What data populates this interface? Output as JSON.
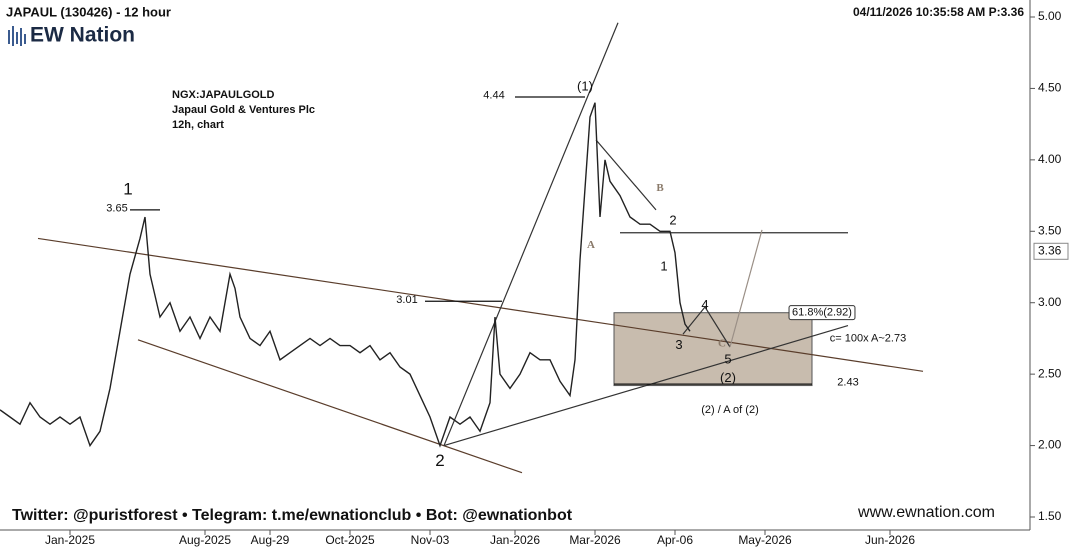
{
  "chart_data": {
    "type": "line",
    "title": "JAPAUL (130426) - 12 hour",
    "timestamp": "04/11/2026 10:35:58 AM  P:3.36",
    "logo": "EW Nation",
    "info": [
      "NGX:JAPAULGOLD",
      "Japaul Gold & Ventures Plc",
      "12h, chart"
    ],
    "footer": "Twitter: @puristforest  •  Telegram: t.me/ewnationclub  •  Bot: @ewnationbot",
    "website": "www.ewnation.com",
    "last_price": {
      "value": 3.36,
      "label": "3.36"
    },
    "xlim": [
      0,
      206
    ],
    "ylim": [
      1.5,
      5.0
    ],
    "xticks": [
      {
        "value": 14,
        "label": "Jan-2025"
      },
      {
        "value": 41,
        "label": "Aug-2025"
      },
      {
        "value": 54,
        "label": "Aug-29"
      },
      {
        "value": 70,
        "label": "Oct-2025"
      },
      {
        "value": 86,
        "label": "Nov-03"
      },
      {
        "value": 103,
        "label": "Jan-2026"
      },
      {
        "value": 119,
        "label": "Mar-2026"
      },
      {
        "value": 135,
        "label": "Apr-06"
      },
      {
        "value": 153,
        "label": "May-2026"
      },
      {
        "value": 178,
        "label": "Jun-2026"
      }
    ],
    "yticks": [
      {
        "value": 1.5,
        "label": "1.50"
      },
      {
        "value": 2.0,
        "label": "2.00"
      },
      {
        "value": 2.5,
        "label": "2.50"
      },
      {
        "value": 3.0,
        "label": "3.00"
      },
      {
        "value": 3.5,
        "label": "3.50"
      },
      {
        "value": 4.0,
        "label": "4.00"
      },
      {
        "value": 4.5,
        "label": "4.50"
      },
      {
        "value": 5.0,
        "label": "5.00"
      }
    ],
    "series": [
      {
        "color": "#222222",
        "x": [
          0,
          2,
          4,
          6,
          8,
          10,
          12,
          14,
          16,
          18,
          20,
          22,
          24,
          26,
          28,
          29,
          30,
          32,
          34,
          36,
          38,
          40,
          42,
          44,
          46,
          47,
          48,
          50,
          52,
          54,
          56,
          58,
          60,
          62,
          64,
          66,
          68,
          70,
          72,
          74,
          76,
          78,
          80,
          82,
          84,
          86,
          88,
          90,
          92,
          94,
          96,
          98,
          99,
          100,
          102,
          104,
          106,
          108,
          110,
          112,
          114,
          115,
          116,
          117,
          118,
          119,
          120,
          121,
          122,
          124,
          126,
          128,
          130,
          132,
          134,
          135,
          136,
          137,
          138
        ],
        "values": [
          2.25,
          2.2,
          2.15,
          2.3,
          2.2,
          2.15,
          2.2,
          2.15,
          2.2,
          2.0,
          2.1,
          2.4,
          2.8,
          3.2,
          3.45,
          3.6,
          3.2,
          2.9,
          3.0,
          2.8,
          2.9,
          2.75,
          2.9,
          2.8,
          3.2,
          3.1,
          2.9,
          2.75,
          2.7,
          2.8,
          2.6,
          2.65,
          2.7,
          2.75,
          2.7,
          2.75,
          2.7,
          2.7,
          2.65,
          2.7,
          2.6,
          2.65,
          2.55,
          2.5,
          2.35,
          2.2,
          2.0,
          2.2,
          2.15,
          2.2,
          2.1,
          2.3,
          2.9,
          2.5,
          2.4,
          2.5,
          2.65,
          2.6,
          2.6,
          2.45,
          2.35,
          2.6,
          3.3,
          3.8,
          4.3,
          4.4,
          3.6,
          4.0,
          3.85,
          3.75,
          3.6,
          3.55,
          3.55,
          3.5,
          3.5,
          3.35,
          3.0,
          2.85,
          2.8
        ]
      }
    ],
    "box": {
      "x": [
        122.8,
        162.4
      ],
      "y": [
        2.42,
        2.93
      ],
      "color": "#c8bcae"
    },
    "lines": [
      {
        "x": [
          7.6,
          184.6
        ],
        "y": [
          3.45,
          2.52
        ],
        "color": "#5a3d2b"
      },
      {
        "x": [
          27.6,
          104.4
        ],
        "y": [
          2.74,
          1.81
        ],
        "color": "#5a3d2b"
      },
      {
        "x": [
          88.8,
          123.6
        ],
        "y": [
          2.0,
          4.96
        ],
        "color": "#333333"
      },
      {
        "x": [
          88.8,
          169.6
        ],
        "y": [
          2.0,
          2.84
        ],
        "color": "#333333"
      },
      {
        "x": [
          119.2,
          131.2
        ],
        "y": [
          4.14,
          3.65
        ],
        "color": "#333333"
      },
      {
        "x": [
          124,
          169.6
        ],
        "y": [
          3.49,
          3.49
        ],
        "color": "#333333"
      },
      {
        "x": [
          26,
          32
        ],
        "y": [
          3.65,
          3.65
        ],
        "color": "#111111"
      },
      {
        "x": [
          85,
          100.4
        ],
        "y": [
          3.01,
          3.01
        ],
        "color": "#111111"
      },
      {
        "x": [
          103,
          117
        ],
        "y": [
          4.44,
          4.44
        ],
        "color": "#111111"
      },
      {
        "x": [
          122.8,
          162.4
        ],
        "y": [
          2.43,
          2.43
        ],
        "color": "#111111"
      },
      {
        "x": [
          136.6,
          141,
          146
        ],
        "y": [
          2.78,
          2.97,
          2.69
        ],
        "color": "#333333"
      },
      {
        "x": [
          146,
          152.4
        ],
        "y": [
          2.69,
          3.51
        ],
        "color": "#9a8f86"
      }
    ],
    "annotations": [
      {
        "text": "1",
        "x": 25.6,
        "y": 3.79,
        "size": 17
      },
      {
        "text": "3.65",
        "x": 23.4,
        "y": 3.66,
        "size": 11
      },
      {
        "text": "2",
        "x": 88,
        "y": 1.89,
        "size": 17
      },
      {
        "text": "3.01",
        "x": 81.4,
        "y": 3.02,
        "size": 11
      },
      {
        "text": "4.44",
        "x": 98.8,
        "y": 4.45,
        "size": 11
      },
      {
        "text": "(1)",
        "x": 117,
        "y": 4.51,
        "size": 13
      },
      {
        "text": "A",
        "x": 118.2,
        "y": 3.4,
        "size": 11,
        "color": "#8a7a6a"
      },
      {
        "text": "B",
        "x": 132,
        "y": 3.8,
        "size": 11,
        "color": "#8a7a6a"
      },
      {
        "text": "2",
        "x": 134.6,
        "y": 3.57,
        "size": 13
      },
      {
        "text": "1",
        "x": 132.8,
        "y": 3.25,
        "size": 13
      },
      {
        "text": "4",
        "x": 141,
        "y": 2.98,
        "size": 13
      },
      {
        "text": "3",
        "x": 135.8,
        "y": 2.7,
        "size": 13
      },
      {
        "text": "C",
        "x": 144.4,
        "y": 2.71,
        "size": 11,
        "color": "#8a7a6a"
      },
      {
        "text": "5",
        "x": 145.6,
        "y": 2.6,
        "size": 13
      },
      {
        "text": "(2)",
        "x": 145.6,
        "y": 2.47,
        "size": 13
      },
      {
        "text": "(2) / A of (2)",
        "x": 146,
        "y": 2.25,
        "size": 11
      },
      {
        "text": "2.43",
        "x": 169.6,
        "y": 2.44,
        "size": 11
      },
      {
        "text": "c= 100x A~2.73",
        "x": 173.6,
        "y": 2.75,
        "size": 11
      },
      {
        "text": "61.8%(2.92)",
        "x": 164.4,
        "y": 2.93,
        "size": 11,
        "boxed": true
      }
    ]
  }
}
